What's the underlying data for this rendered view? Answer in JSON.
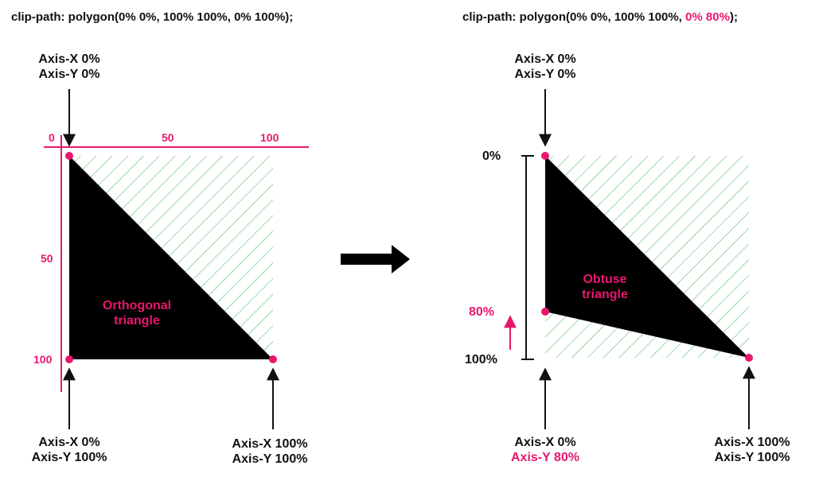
{
  "left": {
    "code": "clip-path: polygon(0% 0%, 100% 100%, 0% 100%);",
    "top_label": [
      "Axis-X 0%",
      "Axis-Y 0%"
    ],
    "axis_ticks": {
      "zero": "0",
      "fifty_x": "50",
      "hundred_x": "100",
      "fifty_y": "50",
      "hundred_y": "100"
    },
    "shape_label": [
      "Orthogonal",
      "triangle"
    ],
    "bottom_left_label": [
      "Axis-X 0%",
      "Axis-Y 100%"
    ],
    "bottom_right_label": [
      "Axis-X 100%",
      "Axis-Y 100%"
    ]
  },
  "right": {
    "code_prefix": "clip-path: polygon(0% 0%, 100% 100%, ",
    "code_highlight": "0% 80%",
    "code_suffix": ");",
    "top_label": [
      "Axis-X 0%",
      "Axis-Y 0%"
    ],
    "scale": {
      "top": "0%",
      "mid": "80%",
      "bottom": "100%"
    },
    "shape_label": [
      "Obtuse",
      "triangle"
    ],
    "bottom_left_label": [
      "Axis-X 0%",
      "Axis-Y 80%"
    ],
    "bottom_right_label": [
      "Axis-X 100%",
      "Axis-Y 100%"
    ]
  },
  "colors": {
    "accent": "#e8176d",
    "hatch": "#3cb64a",
    "shape": "#000000",
    "text": "#111111"
  }
}
